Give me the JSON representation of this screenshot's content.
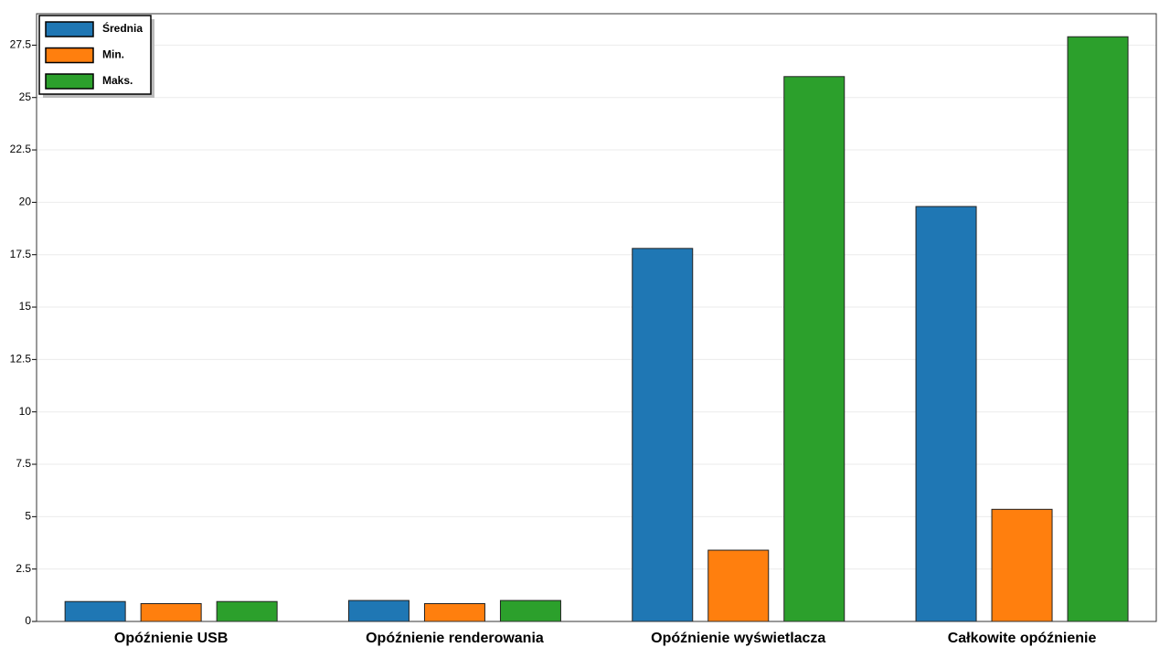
{
  "chart_data": {
    "type": "bar",
    "categories": [
      "Opóźnienie USB",
      "Opóźnienie renderowania",
      "Opóźnienie wyświetlacza",
      "Całkowite opóźnienie"
    ],
    "series": [
      {
        "name": "Średnia",
        "color": "#1f77b4",
        "values": [
          0.95,
          1.0,
          17.8,
          19.8
        ]
      },
      {
        "name": "Min.",
        "color": "#ff7f0e",
        "values": [
          0.85,
          0.85,
          3.4,
          5.35
        ]
      },
      {
        "name": "Maks.",
        "color": "#2ca02c",
        "values": [
          0.95,
          1.0,
          26.0,
          27.9
        ]
      }
    ],
    "ylim": [
      0,
      29
    ],
    "yticks": [
      0,
      2.5,
      5,
      7.5,
      10,
      12.5,
      15,
      17.5,
      20,
      22.5,
      25,
      27.5
    ],
    "grid": true,
    "legend": "upper left"
  }
}
